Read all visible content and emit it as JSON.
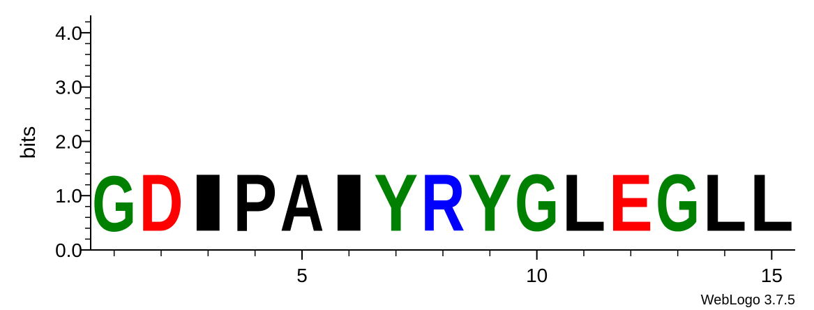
{
  "footer": {
    "credit": "WebLogo 3.7.5"
  },
  "chart_data": {
    "type": "sequence-logo",
    "ylabel": "bits",
    "ylim": [
      0,
      4.32
    ],
    "yticks": [
      {
        "value": 0.0,
        "label": "0.0"
      },
      {
        "value": 1.0,
        "label": "1.0"
      },
      {
        "value": 2.0,
        "label": "2.0"
      },
      {
        "value": 3.0,
        "label": "3.0"
      },
      {
        "value": 4.0,
        "label": "4.0"
      }
    ],
    "y_minor_step": 0.2,
    "xlim": [
      0.5,
      15.5
    ],
    "xticks": [
      {
        "value": 5,
        "label": "5"
      },
      {
        "value": 10,
        "label": "10"
      },
      {
        "value": 15,
        "label": "15"
      }
    ],
    "positions": [
      {
        "pos": 1,
        "letter": "G",
        "bits": 1.65,
        "color": "#008000"
      },
      {
        "pos": 2,
        "letter": "D",
        "bits": 1.7,
        "color": "#ff0000"
      },
      {
        "pos": 3,
        "letter": "I",
        "bits": 1.7,
        "color": "#000000"
      },
      {
        "pos": 4,
        "letter": "P",
        "bits": 1.7,
        "color": "#000000"
      },
      {
        "pos": 5,
        "letter": "A",
        "bits": 1.7,
        "color": "#000000"
      },
      {
        "pos": 6,
        "letter": "I",
        "bits": 1.7,
        "color": "#000000"
      },
      {
        "pos": 7,
        "letter": "Y",
        "bits": 1.7,
        "color": "#008000"
      },
      {
        "pos": 8,
        "letter": "R",
        "bits": 1.7,
        "color": "#0000ff"
      },
      {
        "pos": 9,
        "letter": "Y",
        "bits": 1.7,
        "color": "#008000"
      },
      {
        "pos": 10,
        "letter": "G",
        "bits": 1.7,
        "color": "#008000"
      },
      {
        "pos": 11,
        "letter": "L",
        "bits": 1.7,
        "color": "#000000"
      },
      {
        "pos": 12,
        "letter": "E",
        "bits": 1.7,
        "color": "#ff0000"
      },
      {
        "pos": 13,
        "letter": "G",
        "bits": 1.7,
        "color": "#008000"
      },
      {
        "pos": 14,
        "letter": "L",
        "bits": 1.7,
        "color": "#000000"
      },
      {
        "pos": 15,
        "letter": "L",
        "bits": 1.7,
        "color": "#000000"
      }
    ]
  }
}
